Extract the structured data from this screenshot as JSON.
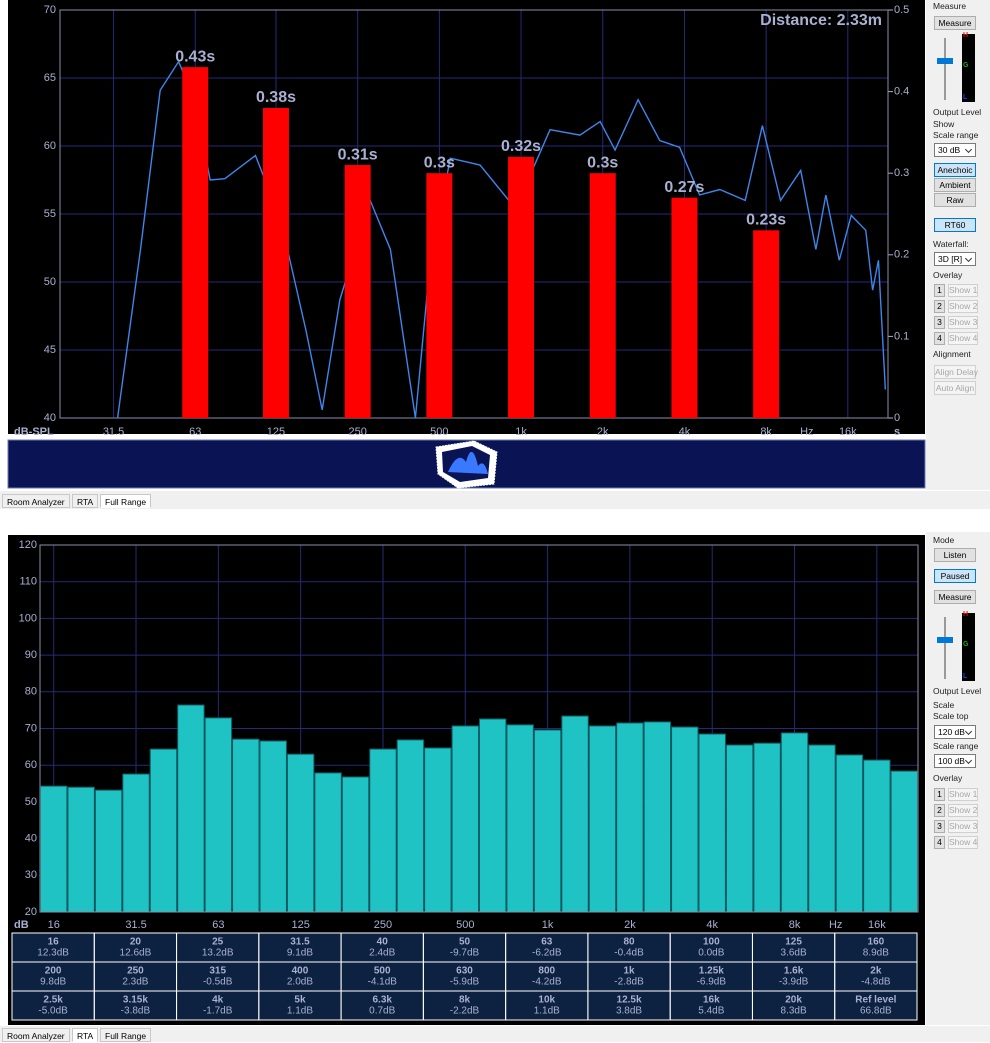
{
  "chart_data": [
    {
      "type": "combo",
      "annotation": "Distance: 2.33m",
      "y_label": "dB-SPL",
      "x_unit": "Hz",
      "y2_label": "s",
      "xlim": [
        20,
        22500
      ],
      "xscale": "log",
      "xticks": [
        31.5,
        63,
        125,
        250,
        500,
        {
          "value": 1000,
          "label": "1k"
        },
        {
          "value": 2000,
          "label": "2k"
        },
        {
          "value": 4000,
          "label": "4k"
        },
        {
          "value": 8000,
          "label": "8k"
        },
        {
          "value": 16000,
          "label": "16k"
        }
      ],
      "ylim": [
        40,
        70
      ],
      "yticks": [
        40,
        45,
        50,
        55,
        60,
        65,
        70
      ],
      "y2lim": [
        0,
        0.5
      ],
      "y2ticks": [
        0,
        0.1,
        0.2,
        0.3,
        0.4,
        0.5
      ],
      "grid": true,
      "series": [
        {
          "type": "line",
          "color": "#3d86ea",
          "x": [
            32.6,
            39.6,
            46.8,
            54.7,
            63,
            71.5,
            81,
            105,
            130,
            161,
            185,
            215,
            278,
            330,
            408,
            463,
            549,
            706,
            954,
            1279,
            1648,
            1956,
            2220,
            2700,
            3245,
            3840,
            4550,
            5400,
            6700,
            7750,
            9040,
            10730,
            12200,
            13280,
            14880,
            16470,
            18630,
            19750,
            20750,
            22000
          ],
          "values": [
            40,
            52.4,
            64.1,
            66.2,
            63.4,
            57.5,
            57.6,
            59.3,
            54.6,
            46.5,
            40.6,
            48.7,
            56,
            52.4,
            40,
            51.6,
            59.1,
            58.6,
            55.4,
            61.2,
            60.8,
            61.8,
            59.7,
            63.4,
            60.4,
            59.9,
            56.4,
            56.8,
            56,
            61.5,
            56,
            58.2,
            52.4,
            56.4,
            51.6,
            54.9,
            53.8,
            49.4,
            51.6,
            42.1
          ]
        },
        {
          "type": "bar",
          "axis": "y2",
          "color": "#ff0000",
          "x": [
            63,
            125,
            250,
            500,
            1000,
            2000,
            4000,
            8000
          ],
          "values": [
            0.43,
            0.38,
            0.31,
            0.3,
            0.32,
            0.3,
            0.27,
            0.23
          ],
          "value_labels": [
            "0.43s",
            "0.38s",
            "0.31s",
            "0.3s",
            "0.32s",
            "0.3s",
            "0.27s",
            "0.23s"
          ]
        }
      ]
    },
    {
      "type": "bar",
      "y_label": "dB",
      "x_unit": "Hz",
      "color": "#1fc3c3",
      "categories": [
        "16",
        null,
        null,
        "31.5",
        null,
        null,
        "63",
        null,
        null,
        "125",
        null,
        null,
        "250",
        null,
        null,
        "500",
        null,
        null,
        "1k",
        null,
        null,
        "2k",
        null,
        null,
        "4k",
        null,
        null,
        "8k",
        null,
        null,
        "16k",
        null
      ],
      "values": [
        54.3,
        54,
        53.2,
        57.6,
        64.4,
        76.4,
        72.9,
        67.1,
        66.6,
        63,
        57.9,
        56.8,
        64.4,
        66.9,
        64.7,
        70.7,
        72.6,
        71,
        69.6,
        73.4,
        70.7,
        71.5,
        71.8,
        70.4,
        68.5,
        65.5,
        66,
        68.8,
        65.5,
        62.8,
        61.4,
        58.4
      ],
      "ylim": [
        20,
        120
      ],
      "yticks": [
        20,
        30,
        40,
        50,
        60,
        70,
        80,
        90,
        100,
        110,
        120
      ],
      "grid": true
    }
  ],
  "rta_table": {
    "rows": [
      [
        [
          "16",
          "12.3dB"
        ],
        [
          "20",
          "12.6dB"
        ],
        [
          "25",
          "13.2dB"
        ],
        [
          "31.5",
          "9.1dB"
        ],
        [
          "40",
          "2.4dB"
        ],
        [
          "50",
          "-9.7dB"
        ],
        [
          "63",
          "-6.2dB"
        ],
        [
          "80",
          "-0.4dB"
        ],
        [
          "100",
          "0.0dB"
        ],
        [
          "125",
          "3.6dB"
        ],
        [
          "160",
          "8.9dB"
        ]
      ],
      [
        [
          "200",
          "9.8dB"
        ],
        [
          "250",
          "2.3dB"
        ],
        [
          "315",
          "-0.5dB"
        ],
        [
          "400",
          "2.0dB"
        ],
        [
          "500",
          "-4.1dB"
        ],
        [
          "630",
          "-5.9dB"
        ],
        [
          "800",
          "-4.2dB"
        ],
        [
          "1k",
          "-2.8dB"
        ],
        [
          "1.25k",
          "-6.9dB"
        ],
        [
          "1.6k",
          "-3.9dB"
        ],
        [
          "2k",
          "-4.8dB"
        ]
      ],
      [
        [
          "2.5k",
          "-5.0dB"
        ],
        [
          "3.15k",
          "-3.8dB"
        ],
        [
          "4k",
          "-1.7dB"
        ],
        [
          "5k",
          "1.1dB"
        ],
        [
          "6.3k",
          "0.7dB"
        ],
        [
          "8k",
          "-2.2dB"
        ],
        [
          "10k",
          "1.1dB"
        ],
        [
          "12.5k",
          "3.8dB"
        ],
        [
          "16k",
          "5.4dB"
        ],
        [
          "20k",
          "8.3dB"
        ],
        [
          "Ref level",
          "66.8dB"
        ]
      ]
    ]
  },
  "top_controls": {
    "measure_label": "Measure",
    "measure": "Measure",
    "meter": [
      "H",
      "G",
      "L"
    ],
    "output_level": "Output Level",
    "show": "Show",
    "scale_range_label": "Scale range",
    "scale_range": "30 dB",
    "views": [
      "Anechoic",
      "Ambient",
      "Raw"
    ],
    "rt60": "RT60",
    "waterfall_label": "Waterfall:",
    "waterfall": "3D [R]",
    "overlay_label": "Overlay",
    "overlays": [
      [
        "1",
        "Show 1"
      ],
      [
        "2",
        "Show 2"
      ],
      [
        "3",
        "Show 3"
      ],
      [
        "4",
        "Show 4"
      ]
    ],
    "alignment_label": "Alignment",
    "align_delay": "Align Delay",
    "auto_align": "Auto Align"
  },
  "bottom_controls": {
    "mode_label": "Mode",
    "modes": [
      "Listen",
      "Paused",
      "Measure"
    ],
    "meter": [
      "H",
      "G",
      "L"
    ],
    "output_level": "Output Level",
    "scale_label": "Scale",
    "scale_top_label": "Scale top",
    "scale_top": "120 dB",
    "scale_range_label": "Scale range",
    "scale_range": "100 dB",
    "overlay_label": "Overlay",
    "overlays": [
      [
        "1",
        "Show 1"
      ],
      [
        "2",
        "Show 2"
      ],
      [
        "3",
        "Show 3"
      ],
      [
        "4",
        "Show 4"
      ]
    ]
  },
  "tabs": {
    "top": [
      "Room Analyzer",
      "RTA",
      "Full Range"
    ],
    "bottom": [
      "Room Analyzer",
      "RTA",
      "Full Range"
    ]
  }
}
